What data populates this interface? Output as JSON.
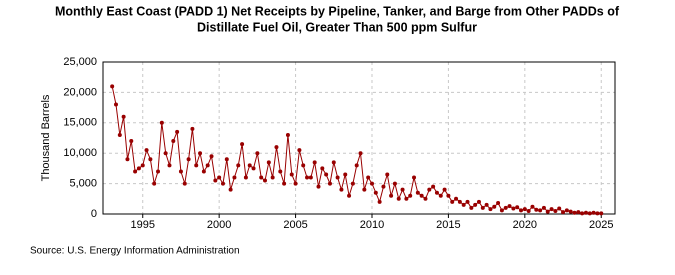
{
  "chart_data": {
    "type": "line",
    "title": "Monthly East Coast (PADD 1) Net Receipts by Pipeline, Tanker, and Barge from Other PADDs of",
    "subtitle": "Distillate Fuel Oil, Greater Than 500 ppm Sulfur",
    "y_label": "Thousand Barrels",
    "source": "Source: U.S. Energy Information Administration",
    "xlim": [
      1992.4,
      2025.9
    ],
    "xticks": [
      1995,
      2000,
      2005,
      2010,
      2015,
      2020,
      2025
    ],
    "ylim": [
      0,
      25000
    ],
    "yticks": [
      {
        "value": 0,
        "label": "0"
      },
      {
        "value": 5000,
        "label": "5,000"
      },
      {
        "value": 10000,
        "label": "10,000"
      },
      {
        "value": 15000,
        "label": "15,000"
      },
      {
        "value": 20000,
        "label": "20,000"
      },
      {
        "value": 25000,
        "label": "25,000"
      }
    ],
    "grid": true,
    "x": [
      1993,
      1993.25,
      1993.5,
      1993.75,
      1994,
      1994.25,
      1994.5,
      1994.75,
      1995,
      1995.25,
      1995.5,
      1995.75,
      1996,
      1996.25,
      1996.5,
      1996.75,
      1997,
      1997.25,
      1997.5,
      1997.75,
      1998,
      1998.25,
      1998.5,
      1998.75,
      1999,
      1999.25,
      1999.5,
      1999.75,
      2000,
      2000.25,
      2000.5,
      2000.75,
      2001,
      2001.25,
      2001.5,
      2001.75,
      2002,
      2002.25,
      2002.5,
      2002.75,
      2003,
      2003.25,
      2003.5,
      2003.75,
      2004,
      2004.25,
      2004.5,
      2004.75,
      2005,
      2005.25,
      2005.5,
      2005.75,
      2006,
      2006.25,
      2006.5,
      2006.75,
      2007,
      2007.25,
      2007.5,
      2007.75,
      2008,
      2008.25,
      2008.5,
      2008.75,
      2009,
      2009.25,
      2009.5,
      2009.75,
      2010,
      2010.25,
      2010.5,
      2010.75,
      2011,
      2011.25,
      2011.5,
      2011.75,
      2012,
      2012.25,
      2012.5,
      2012.75,
      2013,
      2013.25,
      2013.5,
      2013.75,
      2014,
      2014.25,
      2014.5,
      2014.75,
      2015,
      2015.25,
      2015.5,
      2015.75,
      2016,
      2016.25,
      2016.5,
      2016.75,
      2017,
      2017.25,
      2017.5,
      2017.75,
      2018,
      2018.25,
      2018.5,
      2018.75,
      2019,
      2019.25,
      2019.5,
      2019.75,
      2020,
      2020.25,
      2020.5,
      2020.75,
      2021,
      2021.25,
      2021.5,
      2021.75,
      2022,
      2022.25,
      2022.5,
      2022.75,
      2023,
      2023.25,
      2023.5,
      2023.75,
      2024,
      2024.25,
      2024.5,
      2024.75,
      2025
    ],
    "series": [
      {
        "color": "#990000",
        "values": [
          21000,
          18000,
          13000,
          16000,
          9000,
          12000,
          7000,
          7500,
          8000,
          10500,
          9000,
          5000,
          7000,
          15000,
          10000,
          8000,
          12000,
          13500,
          7000,
          5000,
          9000,
          14000,
          8000,
          10000,
          7000,
          8000,
          9500,
          5500,
          6000,
          5000,
          9000,
          4000,
          6000,
          8000,
          11500,
          6000,
          8000,
          7500,
          10000,
          6000,
          5500,
          8500,
          6000,
          11000,
          7000,
          5000,
          13000,
          6500,
          5000,
          10500,
          8000,
          6000,
          6000,
          8500,
          4500,
          7500,
          6500,
          5000,
          8500,
          6000,
          4000,
          6500,
          3000,
          5000,
          8000,
          10000,
          4000,
          6000,
          5000,
          3500,
          2000,
          4500,
          6500,
          3000,
          5000,
          2500,
          4000,
          2500,
          3000,
          6000,
          3500,
          3000,
          2500,
          4000,
          4500,
          3500,
          3000,
          4000,
          3000,
          2000,
          2500,
          2000,
          1500,
          2000,
          1000,
          1500,
          2000,
          1000,
          1500,
          800,
          1200,
          1800,
          600,
          1000,
          1300,
          900,
          1100,
          600,
          800,
          500,
          1200,
          700,
          600,
          1000,
          400,
          800,
          500,
          900,
          300,
          600,
          400,
          200,
          300,
          100,
          200,
          100,
          200,
          100,
          100
        ]
      }
    ]
  }
}
